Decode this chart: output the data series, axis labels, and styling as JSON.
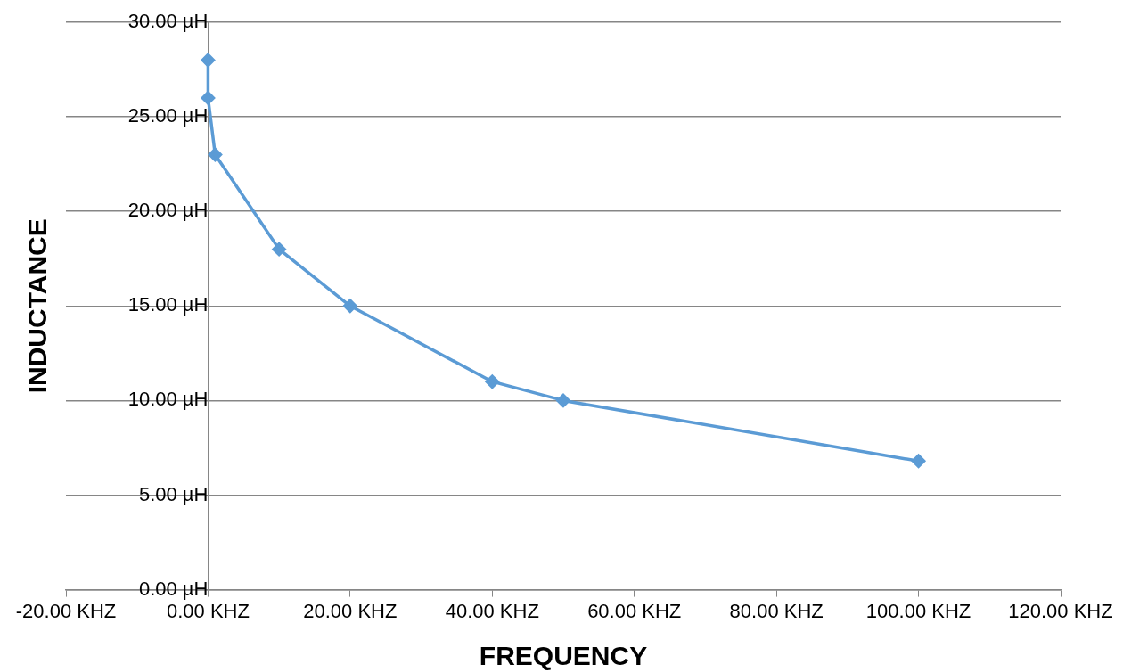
{
  "chart_data": {
    "type": "line",
    "xlabel": "FREQUENCY",
    "ylabel": "INDUCTANCE",
    "series": [
      {
        "color": "#5b9bd5",
        "x": [
          0,
          0,
          1,
          10,
          20,
          40,
          50,
          100
        ],
        "values": [
          28,
          26,
          23,
          18,
          15,
          11,
          10,
          6.8
        ]
      }
    ],
    "xlim": [
      -20,
      120
    ],
    "ylim": [
      0,
      30
    ],
    "xticks": [
      {
        "value": -20,
        "label": "-20.00 KHZ"
      },
      {
        "value": 0,
        "label": "0.00 KHZ"
      },
      {
        "value": 20,
        "label": "20.00 KHZ"
      },
      {
        "value": 40,
        "label": "40.00 KHZ"
      },
      {
        "value": 60,
        "label": "60.00 KHZ"
      },
      {
        "value": 80,
        "label": "80.00 KHZ"
      },
      {
        "value": 100,
        "label": "100.00 KHZ"
      },
      {
        "value": 120,
        "label": "120.00 KHZ"
      }
    ],
    "yticks": [
      {
        "value": 0,
        "label": "0.00 µH"
      },
      {
        "value": 5,
        "label": "5.00 µH"
      },
      {
        "value": 10,
        "label": "10.00 µH"
      },
      {
        "value": 15,
        "label": "15.00 µH"
      },
      {
        "value": 20,
        "label": "20.00 µH"
      },
      {
        "value": 25,
        "label": "25.00 µH"
      },
      {
        "value": 30,
        "label": "30.00 µH"
      }
    ],
    "grid": "y",
    "legend": false,
    "marker": "diamond",
    "line_style": "solid"
  }
}
